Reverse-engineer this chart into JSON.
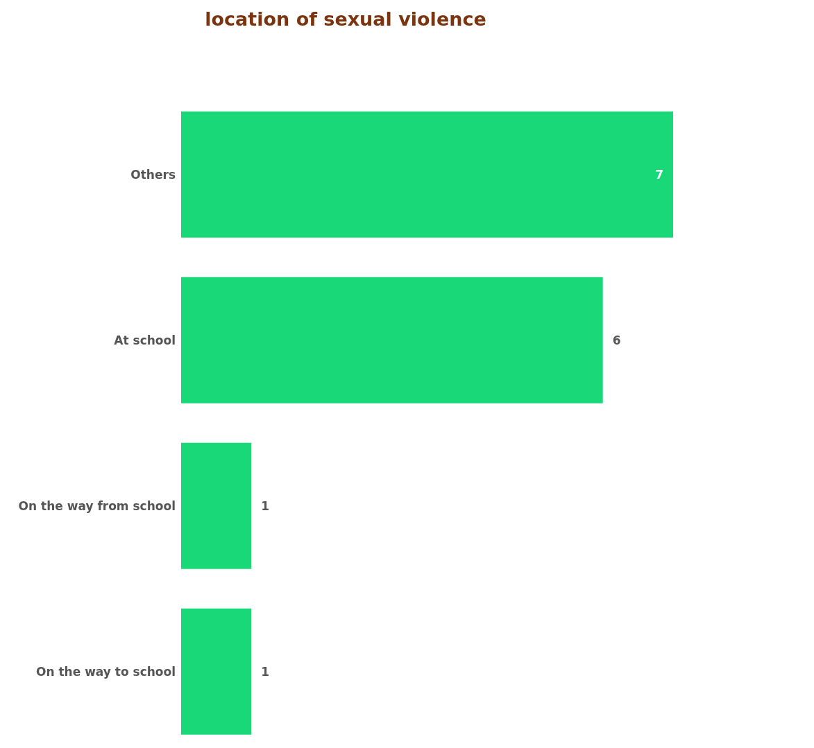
{
  "chart_data": {
    "type": "bar",
    "orientation": "horizontal",
    "title": "location of sexual violence",
    "categories": [
      "Others",
      "At school",
      "On the way from school",
      "On the way to school"
    ],
    "values": [
      7,
      6,
      1,
      1
    ],
    "color": "#19d878",
    "xlim": [
      0,
      7
    ],
    "data_labels": true,
    "tick_labels": "y"
  }
}
